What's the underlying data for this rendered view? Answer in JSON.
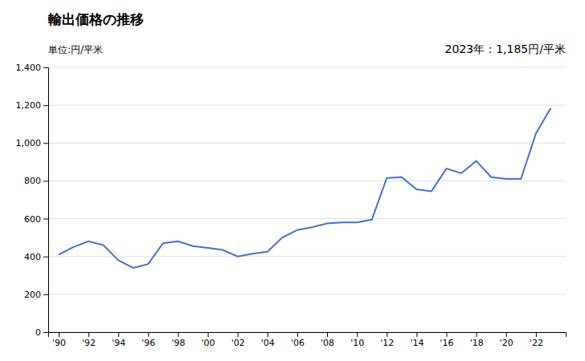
{
  "chart_data": {
    "type": "line",
    "title": "輸出価格の推移",
    "ylabel": "単位:円/平米",
    "annotation": "2023年：1,185円/平米",
    "x": [
      1990,
      1991,
      1992,
      1993,
      1994,
      1995,
      1996,
      1997,
      1998,
      1999,
      2000,
      2001,
      2002,
      2003,
      2004,
      2005,
      2006,
      2007,
      2008,
      2009,
      2010,
      2011,
      2012,
      2013,
      2014,
      2015,
      2016,
      2017,
      2018,
      2019,
      2020,
      2021,
      2022,
      2023
    ],
    "values": [
      410,
      450,
      480,
      460,
      380,
      340,
      360,
      470,
      480,
      455,
      445,
      435,
      400,
      415,
      425,
      500,
      540,
      555,
      575,
      580,
      580,
      595,
      815,
      820,
      755,
      745,
      865,
      840,
      905,
      820,
      810,
      810,
      1050,
      1185
    ],
    "color": "#4472C4",
    "xlim": [
      1989.3,
      2024.0
    ],
    "xticks": [
      {
        "value": 1990,
        "label": "'90"
      },
      {
        "value": 1992,
        "label": "'92"
      },
      {
        "value": 1994,
        "label": "'94"
      },
      {
        "value": 1996,
        "label": "'96"
      },
      {
        "value": 1998,
        "label": "'98"
      },
      {
        "value": 2000,
        "label": "'00"
      },
      {
        "value": 2002,
        "label": "'02"
      },
      {
        "value": 2004,
        "label": "'04"
      },
      {
        "value": 2006,
        "label": "'06"
      },
      {
        "value": 2008,
        "label": "'08"
      },
      {
        "value": 2010,
        "label": "'10"
      },
      {
        "value": 2012,
        "label": "'12"
      },
      {
        "value": 2014,
        "label": "'14"
      },
      {
        "value": 2016,
        "label": "'16"
      },
      {
        "value": 2018,
        "label": "'18"
      },
      {
        "value": 2020,
        "label": "'20"
      },
      {
        "value": 2022,
        "label": "'22"
      }
    ],
    "ylim": [
      0,
      1400
    ],
    "yticks": [
      0,
      200,
      400,
      600,
      800,
      {
        "value": 1000,
        "label": "1,000"
      },
      {
        "value": 1200,
        "label": "1,200"
      },
      {
        "value": 1400,
        "label": "1,400"
      }
    ],
    "grid": "y"
  }
}
